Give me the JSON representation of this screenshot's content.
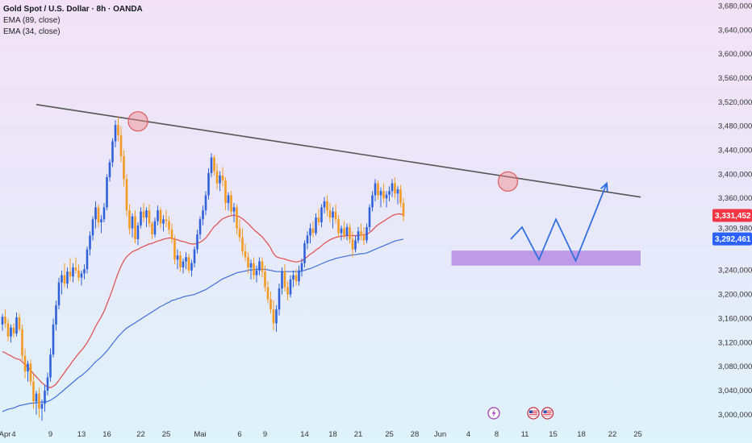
{
  "legend": {
    "title": "Gold Spot / U.S. Dollar · 8h · OANDA",
    "ema89": "EMA (89, close)",
    "ema34": "EMA (34, close)"
  },
  "colors": {
    "up": "#2f62d9",
    "down": "#f39a24",
    "ema34": "#e24a4a",
    "ema89": "#3d6fd6",
    "trendline": "#555555",
    "zone": "#b07fe0",
    "circle": "#f08a8a",
    "arrow": "#2f6fe0"
  },
  "chart_data": {
    "type": "candlestick",
    "title": "Gold Spot / U.S. Dollar · 8h · OANDA",
    "y_ticks": [
      "3,680,000",
      "3,640,000",
      "3,600,000",
      "3,560,000",
      "3,520,000",
      "3,480,000",
      "3,440,000",
      "3,400,000",
      "3,360,000",
      "3,309,980",
      "3,240,000",
      "3,200,000",
      "3,160,000",
      "3,120,000",
      "3,080,000",
      "3,040,000",
      "3,000,000"
    ],
    "y_tick_values": [
      3680,
      3640,
      3600,
      3560,
      3520,
      3480,
      3440,
      3400,
      3360,
      3309.98,
      3240,
      3200,
      3160,
      3120,
      3080,
      3040,
      3000
    ],
    "ylim": [
      2985,
      3690
    ],
    "price_tags": [
      {
        "label": "3,331,452",
        "value": 3331.452,
        "color": "#f23645"
      },
      {
        "label": "3,292,461",
        "value": 3292.461,
        "color": "#2962ff"
      }
    ],
    "x_ticks": [
      {
        "label": "Apr",
        "i": -1
      },
      {
        "label": "4",
        "i": 4
      },
      {
        "label": "9",
        "i": 17
      },
      {
        "label": "13",
        "i": 28
      },
      {
        "label": "16",
        "i": 37
      },
      {
        "label": "22",
        "i": 49
      },
      {
        "label": "25",
        "i": 58
      },
      {
        "label": "Mai",
        "i": 70
      },
      {
        "label": "6",
        "i": 84
      },
      {
        "label": "9",
        "i": 93
      },
      {
        "label": "14",
        "i": 107
      },
      {
        "label": "18",
        "i": 117
      },
      {
        "label": "21",
        "i": 126
      },
      {
        "label": "25",
        "i": 137
      },
      {
        "label": "28",
        "i": 146
      },
      {
        "label": "Jun",
        "i": 155
      },
      {
        "label": "4",
        "i": 165
      },
      {
        "label": "8",
        "i": 175
      },
      {
        "label": "11",
        "i": 185
      },
      {
        "label": "15",
        "i": 195
      },
      {
        "label": "18",
        "i": 205
      },
      {
        "label": "22",
        "i": 216
      },
      {
        "label": "25",
        "i": 225
      }
    ],
    "candles": [
      [
        3150,
        3168,
        3140,
        3163
      ],
      [
        3163,
        3175,
        3145,
        3152
      ],
      [
        3152,
        3160,
        3122,
        3130
      ],
      [
        3130,
        3150,
        3120,
        3145
      ],
      [
        3145,
        3152,
        3128,
        3135
      ],
      [
        3135,
        3170,
        3130,
        3162
      ],
      [
        3162,
        3168,
        3138,
        3142
      ],
      [
        3142,
        3150,
        3090,
        3098
      ],
      [
        3098,
        3110,
        3060,
        3072
      ],
      [
        3072,
        3090,
        3055,
        3085
      ],
      [
        3085,
        3092,
        3048,
        3055
      ],
      [
        3055,
        3068,
        3010,
        3022
      ],
      [
        3022,
        3040,
        3000,
        3035
      ],
      [
        3035,
        3045,
        2995,
        3010
      ],
      [
        3010,
        3025,
        2990,
        3018
      ],
      [
        3018,
        3050,
        3005,
        3040
      ],
      [
        3040,
        3070,
        3032,
        3062
      ],
      [
        3062,
        3110,
        3055,
        3100
      ],
      [
        3100,
        3160,
        3095,
        3150
      ],
      [
        3150,
        3190,
        3140,
        3182
      ],
      [
        3182,
        3228,
        3175,
        3220
      ],
      [
        3220,
        3240,
        3200,
        3232
      ],
      [
        3232,
        3252,
        3212,
        3218
      ],
      [
        3218,
        3245,
        3210,
        3238
      ],
      [
        3238,
        3260,
        3222,
        3230
      ],
      [
        3230,
        3252,
        3220,
        3245
      ],
      [
        3245,
        3262,
        3235,
        3240
      ],
      [
        3240,
        3250,
        3222,
        3228
      ],
      [
        3228,
        3240,
        3215,
        3235
      ],
      [
        3235,
        3250,
        3225,
        3242
      ],
      [
        3242,
        3280,
        3235,
        3275
      ],
      [
        3275,
        3305,
        3265,
        3298
      ],
      [
        3298,
        3330,
        3290,
        3325
      ],
      [
        3325,
        3355,
        3310,
        3345
      ],
      [
        3345,
        3350,
        3312,
        3320
      ],
      [
        3320,
        3332,
        3302,
        3325
      ],
      [
        3325,
        3352,
        3320,
        3345
      ],
      [
        3345,
        3400,
        3340,
        3395
      ],
      [
        3395,
        3425,
        3388,
        3420
      ],
      [
        3420,
        3460,
        3412,
        3455
      ],
      [
        3455,
        3490,
        3445,
        3482
      ],
      [
        3482,
        3495,
        3455,
        3465
      ],
      [
        3465,
        3480,
        3420,
        3430
      ],
      [
        3430,
        3440,
        3380,
        3392
      ],
      [
        3392,
        3400,
        3330,
        3340
      ],
      [
        3340,
        3350,
        3300,
        3310
      ],
      [
        3310,
        3335,
        3295,
        3330
      ],
      [
        3330,
        3340,
        3285,
        3292
      ],
      [
        3292,
        3320,
        3282,
        3315
      ],
      [
        3315,
        3345,
        3310,
        3338
      ],
      [
        3338,
        3352,
        3320,
        3328
      ],
      [
        3328,
        3345,
        3312,
        3340
      ],
      [
        3340,
        3350,
        3312,
        3318
      ],
      [
        3318,
        3322,
        3292,
        3300
      ],
      [
        3300,
        3328,
        3295,
        3322
      ],
      [
        3322,
        3348,
        3315,
        3340
      ],
      [
        3340,
        3345,
        3310,
        3318
      ],
      [
        3318,
        3332,
        3305,
        3325
      ],
      [
        3325,
        3340,
        3312,
        3322
      ],
      [
        3322,
        3330,
        3300,
        3308
      ],
      [
        3308,
        3318,
        3285,
        3292
      ],
      [
        3292,
        3298,
        3250,
        3258
      ],
      [
        3258,
        3275,
        3242,
        3265
      ],
      [
        3265,
        3272,
        3238,
        3245
      ],
      [
        3245,
        3260,
        3235,
        3255
      ],
      [
        3255,
        3270,
        3242,
        3262
      ],
      [
        3262,
        3268,
        3235,
        3240
      ],
      [
        3240,
        3258,
        3230,
        3252
      ],
      [
        3252,
        3280,
        3245,
        3275
      ],
      [
        3275,
        3308,
        3268,
        3300
      ],
      [
        3300,
        3330,
        3292,
        3325
      ],
      [
        3325,
        3348,
        3315,
        3340
      ],
      [
        3340,
        3372,
        3332,
        3365
      ],
      [
        3365,
        3410,
        3358,
        3402
      ],
      [
        3402,
        3435,
        3395,
        3428
      ],
      [
        3428,
        3432,
        3398,
        3405
      ],
      [
        3405,
        3418,
        3375,
        3385
      ],
      [
        3385,
        3405,
        3372,
        3398
      ],
      [
        3398,
        3412,
        3380,
        3390
      ],
      [
        3390,
        3395,
        3340,
        3352
      ],
      [
        3352,
        3370,
        3340,
        3365
      ],
      [
        3365,
        3372,
        3330,
        3338
      ],
      [
        3338,
        3352,
        3320,
        3345
      ],
      [
        3345,
        3350,
        3300,
        3310
      ],
      [
        3310,
        3325,
        3288,
        3295
      ],
      [
        3295,
        3310,
        3265,
        3272
      ],
      [
        3272,
        3285,
        3255,
        3262
      ],
      [
        3262,
        3270,
        3235,
        3245
      ],
      [
        3245,
        3258,
        3225,
        3252
      ],
      [
        3252,
        3262,
        3225,
        3232
      ],
      [
        3232,
        3248,
        3220,
        3240
      ],
      [
        3240,
        3262,
        3232,
        3255
      ],
      [
        3255,
        3262,
        3228,
        3238
      ],
      [
        3238,
        3248,
        3205,
        3212
      ],
      [
        3212,
        3222,
        3185,
        3192
      ],
      [
        3192,
        3205,
        3168,
        3175
      ],
      [
        3175,
        3190,
        3140,
        3152
      ],
      [
        3152,
        3182,
        3138,
        3175
      ],
      [
        3175,
        3218,
        3165,
        3210
      ],
      [
        3210,
        3245,
        3200,
        3238
      ],
      [
        3238,
        3250,
        3205,
        3212
      ],
      [
        3212,
        3222,
        3190,
        3200
      ],
      [
        3200,
        3232,
        3195,
        3225
      ],
      [
        3225,
        3240,
        3212,
        3232
      ],
      [
        3232,
        3242,
        3215,
        3222
      ],
      [
        3222,
        3248,
        3215,
        3240
      ],
      [
        3240,
        3260,
        3230,
        3252
      ],
      [
        3252,
        3290,
        3245,
        3285
      ],
      [
        3285,
        3305,
        3275,
        3298
      ],
      [
        3298,
        3318,
        3285,
        3310
      ],
      [
        3310,
        3322,
        3295,
        3302
      ],
      [
        3302,
        3335,
        3298,
        3328
      ],
      [
        3328,
        3342,
        3315,
        3320
      ],
      [
        3320,
        3350,
        3312,
        3345
      ],
      [
        3345,
        3362,
        3335,
        3355
      ],
      [
        3355,
        3365,
        3330,
        3340
      ],
      [
        3340,
        3352,
        3320,
        3328
      ],
      [
        3328,
        3345,
        3310,
        3338
      ],
      [
        3338,
        3350,
        3318,
        3325
      ],
      [
        3325,
        3332,
        3295,
        3302
      ],
      [
        3302,
        3315,
        3290,
        3310
      ],
      [
        3310,
        3322,
        3292,
        3298
      ],
      [
        3298,
        3318,
        3290,
        3312
      ],
      [
        3312,
        3318,
        3285,
        3292
      ],
      [
        3292,
        3305,
        3262,
        3275
      ],
      [
        3275,
        3298,
        3270,
        3290
      ],
      [
        3290,
        3312,
        3285,
        3305
      ],
      [
        3305,
        3318,
        3290,
        3298
      ],
      [
        3298,
        3312,
        3282,
        3290
      ],
      [
        3290,
        3318,
        3285,
        3312
      ],
      [
        3312,
        3350,
        3305,
        3345
      ],
      [
        3345,
        3372,
        3338,
        3365
      ],
      [
        3365,
        3392,
        3355,
        3385
      ],
      [
        3385,
        3390,
        3358,
        3365
      ],
      [
        3365,
        3378,
        3345,
        3372
      ],
      [
        3372,
        3385,
        3352,
        3360
      ],
      [
        3360,
        3372,
        3345,
        3366
      ],
      [
        3366,
        3380,
        3355,
        3372
      ],
      [
        3372,
        3392,
        3362,
        3385
      ],
      [
        3385,
        3395,
        3360,
        3368
      ],
      [
        3368,
        3380,
        3350,
        3375
      ],
      [
        3375,
        3382,
        3345,
        3352
      ],
      [
        3352,
        3360,
        3322,
        3330
      ]
    ],
    "ema34": [
      3105,
      3103,
      3100,
      3098,
      3095,
      3093,
      3092,
      3088,
      3083,
      3079,
      3074,
      3068,
      3063,
      3058,
      3053,
      3049,
      3046,
      3045,
      3047,
      3051,
      3057,
      3064,
      3070,
      3077,
      3083,
      3090,
      3096,
      3102,
      3107,
      3113,
      3120,
      3128,
      3137,
      3147,
      3155,
      3163,
      3172,
      3184,
      3196,
      3209,
      3223,
      3236,
      3247,
      3256,
      3263,
      3267,
      3271,
      3273,
      3275,
      3278,
      3280,
      3282,
      3284,
      3285,
      3287,
      3289,
      3290,
      3292,
      3293,
      3294,
      3294,
      3292,
      3291,
      3289,
      3288,
      3287,
      3285,
      3284,
      3284,
      3285,
      3287,
      3290,
      3294,
      3300,
      3307,
      3313,
      3317,
      3322,
      3326,
      3328,
      3330,
      3331,
      3332,
      3331,
      3329,
      3326,
      3322,
      3318,
      3313,
      3308,
      3304,
      3300,
      3296,
      3290,
      3284,
      3277,
      3268,
      3263,
      3261,
      3260,
      3259,
      3257,
      3256,
      3255,
      3254,
      3255,
      3256,
      3259,
      3263,
      3267,
      3270,
      3274,
      3277,
      3281,
      3285,
      3288,
      3291,
      3293,
      3295,
      3296,
      3297,
      3297,
      3298,
      3298,
      3298,
      3298,
      3298,
      3299,
      3299,
      3300,
      3303,
      3307,
      3312,
      3316,
      3319,
      3322,
      3325,
      3328,
      3331,
      3333,
      3334,
      3334,
      3332
    ],
    "ema89": [
      3005,
      3007,
      3009,
      3010,
      3011,
      3013,
      3015,
      3016,
      3017,
      3018,
      3019,
      3019,
      3020,
      3020,
      3021,
      3021,
      3022,
      3024,
      3027,
      3030,
      3034,
      3038,
      3042,
      3046,
      3050,
      3054,
      3058,
      3062,
      3065,
      3069,
      3073,
      3078,
      3083,
      3088,
      3092,
      3096,
      3101,
      3106,
      3112,
      3118,
      3124,
      3130,
      3135,
      3140,
      3144,
      3147,
      3150,
      3153,
      3156,
      3159,
      3162,
      3165,
      3168,
      3171,
      3174,
      3177,
      3180,
      3182,
      3185,
      3187,
      3190,
      3191,
      3193,
      3194,
      3196,
      3197,
      3198,
      3199,
      3200,
      3202,
      3204,
      3206,
      3208,
      3211,
      3214,
      3217,
      3220,
      3223,
      3226,
      3228,
      3230,
      3232,
      3234,
      3236,
      3237,
      3238,
      3239,
      3240,
      3241,
      3241,
      3242,
      3242,
      3242,
      3242,
      3241,
      3240,
      3239,
      3238,
      3238,
      3238,
      3238,
      3238,
      3238,
      3238,
      3238,
      3238,
      3239,
      3240,
      3242,
      3243,
      3245,
      3247,
      3249,
      3251,
      3253,
      3255,
      3257,
      3258,
      3260,
      3261,
      3262,
      3263,
      3264,
      3265,
      3266,
      3266,
      3267,
      3268,
      3268,
      3269,
      3271,
      3273,
      3275,
      3277,
      3279,
      3281,
      3283,
      3285,
      3287,
      3289,
      3290,
      3291,
      3292
    ],
    "trendline": [
      {
        "i": 12,
        "y": 3516
      },
      {
        "i": 226,
        "y": 3362
      }
    ],
    "zone": {
      "i0": 159,
      "i1": 226,
      "y0": 3248,
      "y1": 3273
    },
    "circles": [
      {
        "i": 48,
        "y": 3488
      },
      {
        "i": 179,
        "y": 3388
      }
    ],
    "projection": [
      {
        "i": 180,
        "y": 3292
      },
      {
        "i": 184,
        "y": 3312
      },
      {
        "i": 190,
        "y": 3258
      },
      {
        "i": 196,
        "y": 3325
      },
      {
        "i": 203,
        "y": 3256
      },
      {
        "i": 214,
        "y": 3385
      }
    ],
    "markers": [
      {
        "type": "lightning",
        "i": 174
      },
      {
        "type": "flag",
        "i": 188
      },
      {
        "type": "flag",
        "i": 193
      }
    ]
  }
}
